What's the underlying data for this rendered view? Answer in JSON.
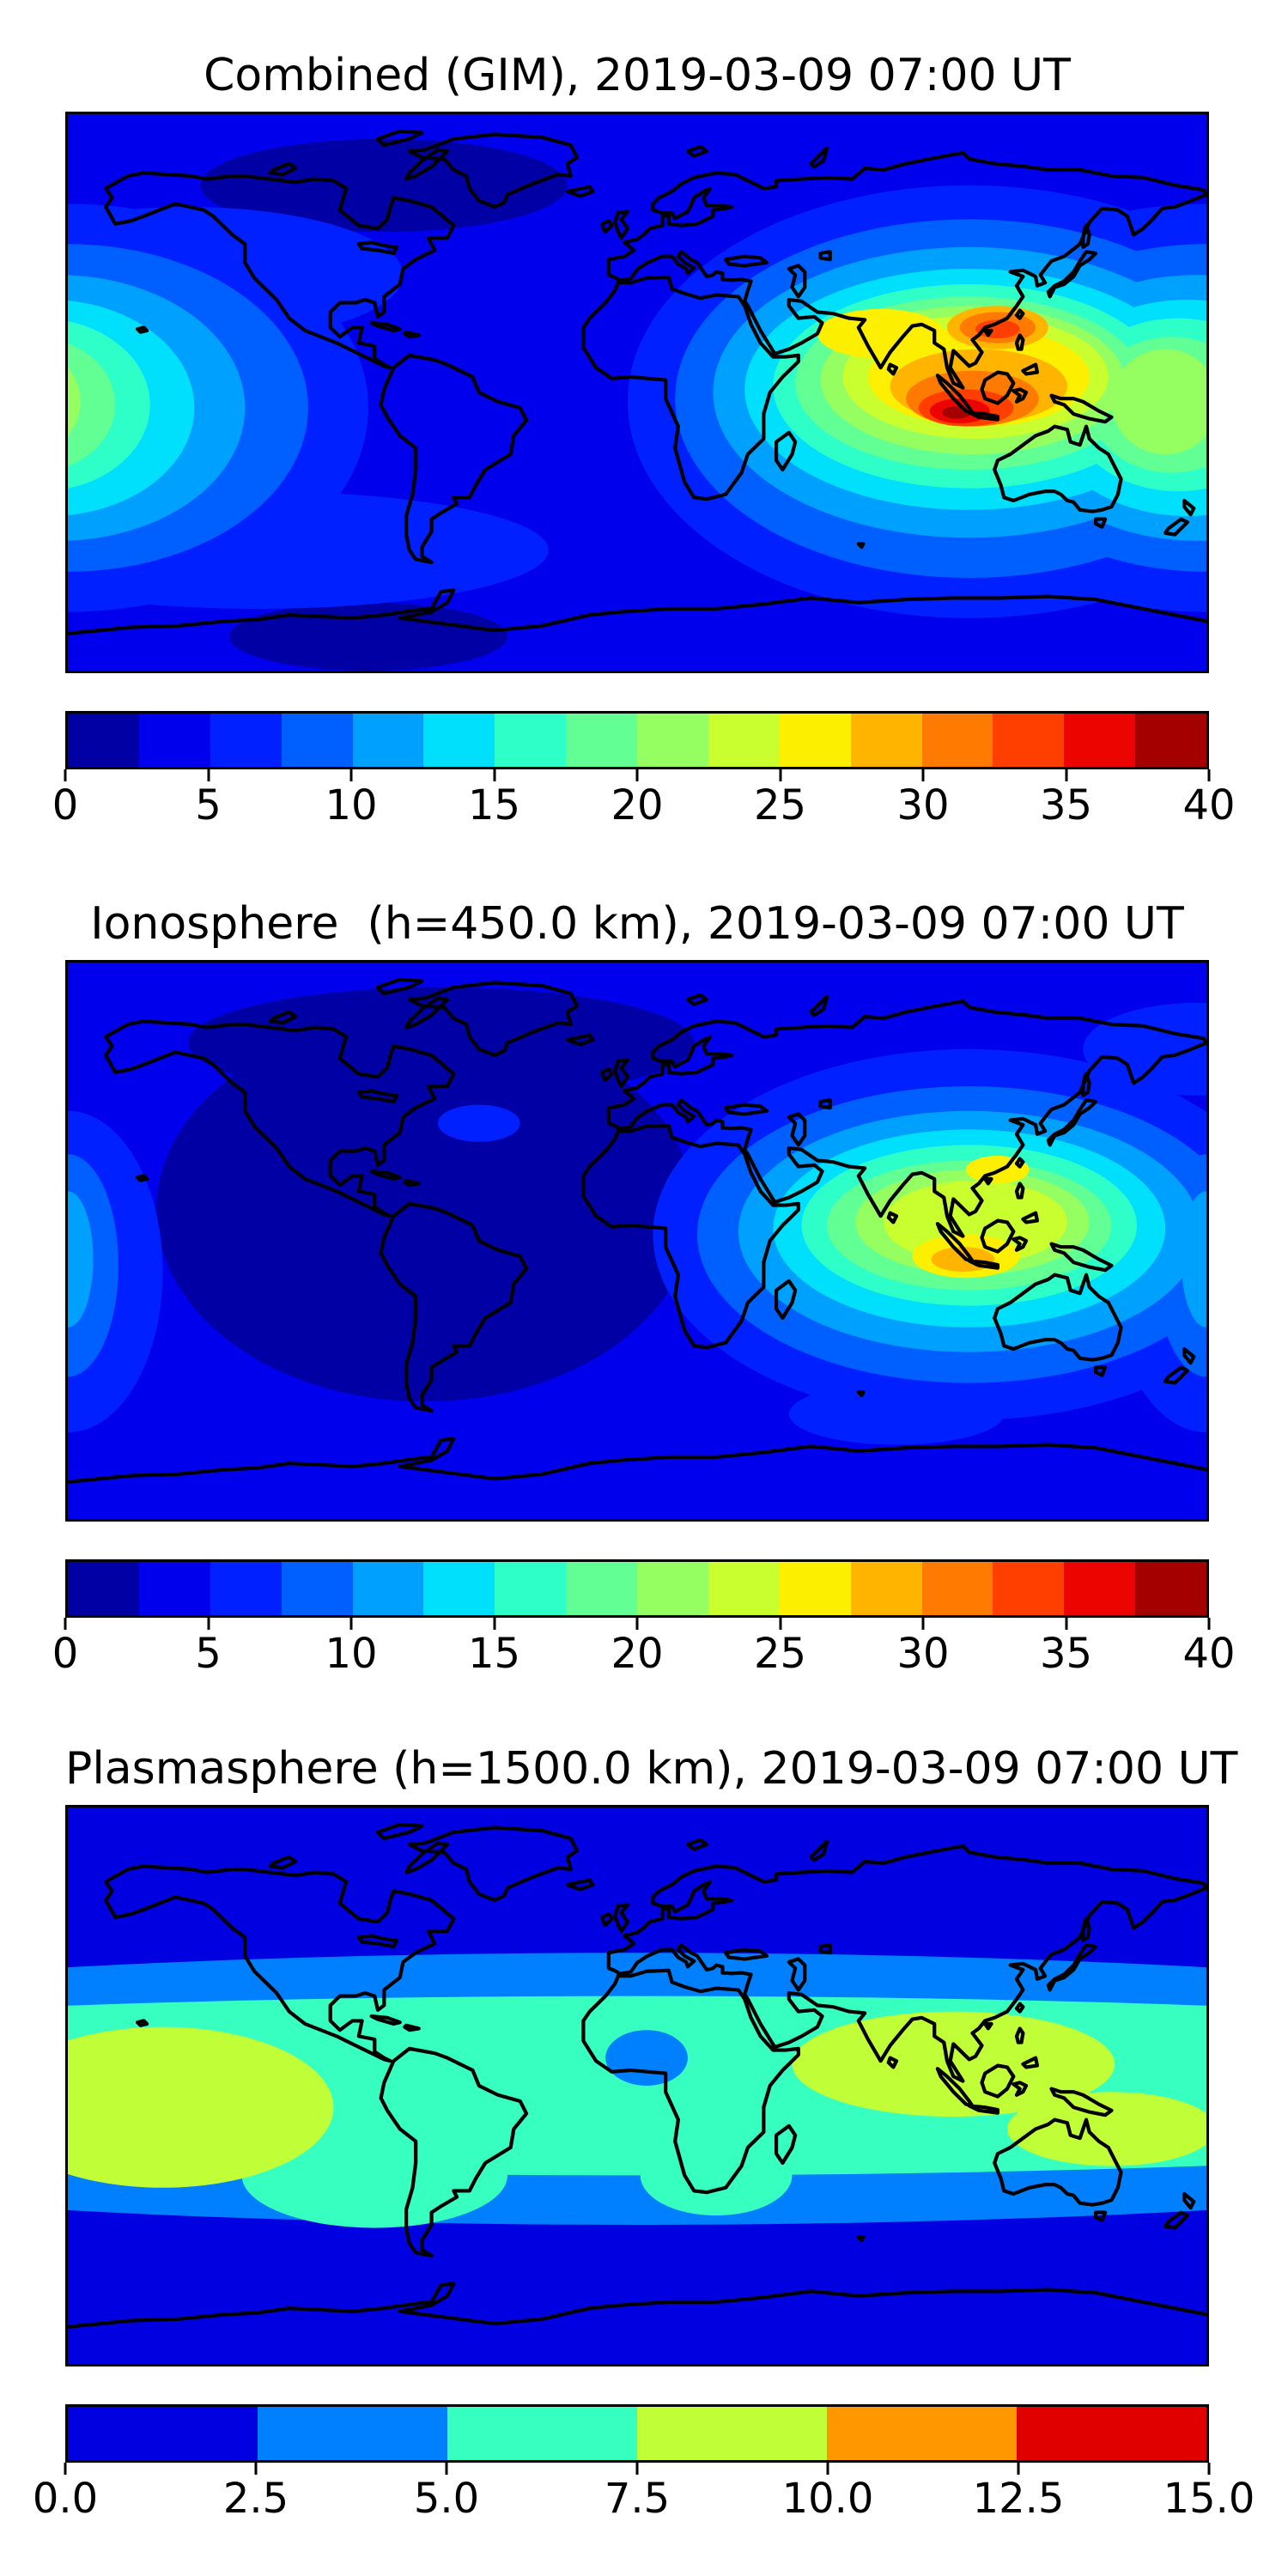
{
  "figure": {
    "background_color": "#FFFFFF",
    "panels": [
      {
        "title": "Combined (GIM), 2019-03-09 07:00 UT",
        "map": {
          "base_color": "#0000EC",
          "blobs": [
            [
              100,
              23,
              58,
              15,
              "#0000A4"
            ],
            [
              95,
              169,
              44,
              11,
              "#0000A4"
            ],
            [
              0,
              95,
              95,
              66,
              "#0020FF"
            ],
            [
              360,
              95,
              95,
              66,
              "#0020FF"
            ],
            [
              285,
              93,
              108,
              70,
              "#0020FF"
            ],
            [
              60,
              141,
              92,
              19,
              "#0020FF"
            ],
            [
              38,
              52,
              68,
              22,
              "#0020FF"
            ],
            [
              0,
              95,
              76,
              53,
              "#0060FF"
            ],
            [
              360,
              95,
              76,
              53,
              "#0060FF"
            ],
            [
              285,
              92,
              93,
              58,
              "#0060FF"
            ],
            [
              -3,
              95,
              59,
              43,
              "#00A0FF"
            ],
            [
              357,
              95,
              59,
              43,
              "#00A0FF"
            ],
            [
              285,
              90,
              81,
              47,
              "#00A0FF"
            ],
            [
              -6,
              95,
              46,
              35,
              "#00E0FC"
            ],
            [
              354,
              95,
              46,
              35,
              "#00E0FC"
            ],
            [
              285,
              89,
              71,
              39,
              "#00E0FC"
            ],
            [
              -9,
              94,
              35,
              28,
              "#2EFFC9"
            ],
            [
              351,
              94,
              35,
              28,
              "#2EFFC9"
            ],
            [
              285,
              88,
              62,
              33,
              "#2EFFC9"
            ],
            [
              -11,
              94,
              26,
              22,
              "#62FF95"
            ],
            [
              349,
              94,
              26,
              22,
              "#62FF95"
            ],
            [
              285,
              87,
              55,
              28,
              "#62FF95"
            ],
            [
              -13,
              93,
              17,
              17,
              "#95FF62"
            ],
            [
              347,
              93,
              17,
              17,
              "#95FF62"
            ],
            [
              286,
              86,
              48,
              24,
              "#95FF62"
            ],
            [
              287,
              85,
              42,
              20,
              "#C9FF2E"
            ],
            [
              288,
              85,
              35,
              16,
              "#FCF000"
            ],
            [
              257,
              71,
              20,
              8,
              "#FCF000"
            ],
            [
              288,
              88,
              28,
              12,
              "#FFB500"
            ],
            [
              294,
              69,
              16,
              7,
              "#FFB500"
            ],
            [
              286,
              92,
              21,
              9,
              "#FF7A00"
            ],
            [
              294,
              69,
              12,
              5,
              "#FF7A00"
            ],
            [
              284,
              95,
              15,
              6,
              "#FF3F00"
            ],
            [
              294,
              69.5,
              7,
              3,
              "#FF3F00"
            ],
            [
              282,
              96,
              9.5,
              4,
              "#EC0400"
            ],
            [
              281,
              96.5,
              4.5,
              2,
              "#A40000"
            ]
          ]
        },
        "colorbar": {
          "segment_colors": [
            "#0000A4",
            "#0000EC",
            "#0020FF",
            "#0060FF",
            "#00A0FF",
            "#00E0FC",
            "#2EFFC9",
            "#62FF95",
            "#95FF62",
            "#C9FF2E",
            "#FCF000",
            "#FFB500",
            "#FF7A00",
            "#FF3F00",
            "#EC0400",
            "#A40000"
          ],
          "ticks": [
            "0",
            "5",
            "10",
            "15",
            "20",
            "25",
            "30",
            "35",
            "40"
          ]
        }
      },
      {
        "title": "Ionosphere  (h=450.0 km), 2019-03-09 07:00 UT",
        "map": {
          "base_color": "#0000EC",
          "blobs": [
            [
              113,
              80,
              85,
              62,
              "#0000A4"
            ],
            [
              118,
              26,
              80,
              18,
              "#0000A4"
            ],
            [
              285,
              88,
              100,
              60,
              "#0020FF"
            ],
            [
              357,
              28,
              36,
              15,
              "#0020FF"
            ],
            [
              262,
              146,
              34,
              10,
              "#0020FF"
            ],
            [
              130,
              52,
              13,
              6,
              "#0020FF"
            ],
            [
              0,
              100,
              30,
              52,
              "#0020FF"
            ],
            [
              360,
              100,
              30,
              52,
              "#0020FF"
            ],
            [
              285,
              88,
              86,
              48,
              "#0060FF"
            ],
            [
              0,
              98,
              16,
              36,
              "#0060FF"
            ],
            [
              360,
              98,
              16,
              36,
              "#0060FF"
            ],
            [
              285,
              87,
              73,
              39,
              "#00A0FF"
            ],
            [
              0,
              96,
              8,
              22,
              "#00A0FF"
            ],
            [
              360,
              96,
              8,
              22,
              "#00A0FF"
            ],
            [
              285,
              86,
              62,
              32,
              "#00E0FC"
            ],
            [
              285,
              85,
              53,
              26,
              "#2EFFC9"
            ],
            [
              285,
              85,
              45,
              21,
              "#62FF95"
            ],
            [
              286,
              84,
              37,
              17,
              "#95FF62"
            ],
            [
              287,
              84,
              29,
              13.5,
              "#C9FF2E"
            ],
            [
              284,
              95,
              17,
              7,
              "#FCF000"
            ],
            [
              294,
              67,
              10,
              4.5,
              "#FCF000"
            ],
            [
              283,
              96,
              10,
              4,
              "#FFB500"
            ]
          ]
        },
        "colorbar": {
          "segment_colors": [
            "#0000A4",
            "#0000EC",
            "#0020FF",
            "#0060FF",
            "#00A0FF",
            "#00E0FC",
            "#2EFFC9",
            "#62FF95",
            "#95FF62",
            "#C9FF2E",
            "#FCF000",
            "#FFB500",
            "#FF7A00",
            "#FF3F00",
            "#EC0400",
            "#A40000"
          ],
          "ticks": [
            "0",
            "5",
            "10",
            "15",
            "20",
            "25",
            "30",
            "35",
            "40"
          ]
        }
      },
      {
        "title": "Plasmasphere (h=1500.0 km), 2019-03-09 07:00 UT",
        "map": {
          "base_color": "#0000E0",
          "blobs": [
            [
              180,
              91,
              400,
              44,
              "#0080FF"
            ],
            [
              180,
              90,
              400,
              29,
              "#37FFC0"
            ],
            [
              97,
              119,
              42,
              17,
              "#37FFC0"
            ],
            [
              205,
              119,
              24,
              13,
              "#37FFC0"
            ],
            [
              30,
              97,
              54,
              26,
              "#C0FF37"
            ],
            [
              280,
              83,
              51,
              17,
              "#C0FF37"
            ],
            [
              330,
              104,
              33,
              12,
              "#C0FF37"
            ],
            [
              183,
              81,
              13,
              9,
              "#0080FF"
            ]
          ]
        },
        "colorbar": {
          "segment_colors": [
            "#0000E0",
            "#0080FF",
            "#37FFC0",
            "#C0FF37",
            "#FF9700",
            "#E00000"
          ],
          "ticks": [
            "0.0",
            "2.5",
            "5.0",
            "7.5",
            "10.0",
            "12.5",
            "15.0"
          ]
        }
      }
    ]
  },
  "chart_data": [
    {
      "type": "heatmap",
      "title": "Combined (GIM), 2019-03-09 07:00 UT",
      "projection": "equirectangular world map with black coastlines",
      "x_range": [
        -180,
        180
      ],
      "y_range": [
        -90,
        90
      ],
      "colormap": "jet (discrete filled contours)",
      "levels": {
        "min": 0,
        "max": 40,
        "step": 2.5
      },
      "colorbar_ticks": [
        0,
        5,
        10,
        15,
        20,
        25,
        30,
        35,
        40
      ],
      "legend_position": "horizontal colorbar below map",
      "grid": false,
      "features": [
        {
          "name": "primary maximum over Indonesia / Indian Ocean",
          "lon": 100,
          "lat": -6,
          "value": 39
        },
        {
          "name": "secondary maximum over southern China",
          "lon": 116,
          "lat": 20,
          "value": 34
        },
        {
          "name": "equatorial enhancement wrapping the dateline",
          "lon": 180,
          "lat": -4,
          "value": 24
        },
        {
          "name": "minimum over northern Canada / Greenland",
          "lon": -80,
          "lat": 67,
          "value": 2
        },
        {
          "name": "minimum over West Antarctica",
          "lon": -85,
          "lat": -79,
          "value": 2
        },
        {
          "name": "ocean background level",
          "value": 4
        }
      ]
    },
    {
      "type": "heatmap",
      "title": "Ionosphere  (h=450.0 km), 2019-03-09 07:00 UT",
      "projection": "equirectangular world map with black coastlines",
      "x_range": [
        -180,
        180
      ],
      "y_range": [
        -90,
        90
      ],
      "colormap": "jet (discrete filled contours)",
      "levels": {
        "min": 0,
        "max": 40,
        "step": 2.5
      },
      "colorbar_ticks": [
        0,
        5,
        10,
        15,
        20,
        25,
        30,
        35,
        40
      ],
      "legend_position": "horizontal colorbar below map",
      "grid": false,
      "features": [
        {
          "name": "primary maximum over Indonesia",
          "lon": 102,
          "lat": -6,
          "value": 29
        },
        {
          "name": "secondary maximum over southern China",
          "lon": 114,
          "lat": 23,
          "value": 26
        },
        {
          "name": "weak enhancement at dateline edges",
          "lon": 180,
          "lat": -6,
          "value": 12
        },
        {
          "name": "broad minimum over Americas and Atlantic",
          "lon": -65,
          "lat": 10,
          "value": 2
        }
      ]
    },
    {
      "type": "heatmap",
      "title": "Plasmasphere (h=1500.0 km), 2019-03-09 07:00 UT",
      "projection": "equirectangular world map with black coastlines",
      "x_range": [
        -180,
        180
      ],
      "y_range": [
        -90,
        90
      ],
      "colormap": "jet (discrete filled contours)",
      "levels": {
        "min": 0,
        "max": 15,
        "step": 2.5
      },
      "colorbar_ticks": [
        0.0,
        2.5,
        5.0,
        7.5,
        10.0,
        12.5,
        15.0
      ],
      "legend_position": "horizontal colorbar below map",
      "grid": false,
      "features": [
        {
          "name": "equatorial band between about +/-30 latitude",
          "value": 6
        },
        {
          "name": "maximum over central Pacific",
          "lon": -145,
          "lat": -8,
          "value": 9
        },
        {
          "name": "maximum over Indian Ocean / Southeast Asia",
          "lon": 100,
          "lat": 5,
          "value": 9
        },
        {
          "name": "local dip over West Africa",
          "lon": 3,
          "lat": 9,
          "value": 4
        },
        {
          "name": "polar regions",
          "value": 2
        }
      ]
    }
  ]
}
